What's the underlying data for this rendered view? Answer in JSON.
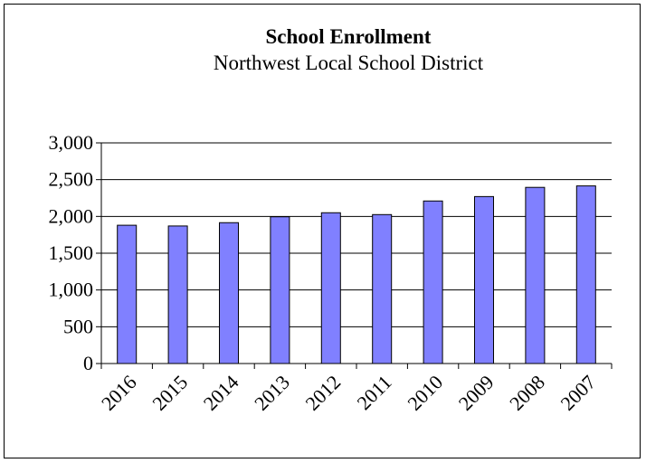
{
  "chart_data": {
    "type": "bar",
    "title": "School Enrollment",
    "subtitle": "Northwest Local School District",
    "xlabel": "",
    "ylabel": "",
    "categories": [
      "2016",
      "2015",
      "2014",
      "2013",
      "2012",
      "2011",
      "2010",
      "2009",
      "2008",
      "2007"
    ],
    "values": [
      1880,
      1870,
      1915,
      1995,
      2050,
      2025,
      2210,
      2270,
      2395,
      2415
    ],
    "ylim": [
      0,
      3000
    ],
    "yticks": [
      0,
      500,
      1000,
      1500,
      2000,
      2500,
      3000
    ],
    "ytick_labels": [
      "0",
      "500",
      "1,000",
      "1,500",
      "2,000",
      "2,500",
      "3,000"
    ],
    "grid": true,
    "legend": "none",
    "colors": {
      "bar_fill": "#8080ff",
      "bar_stroke": "#000000",
      "grid": "#000000",
      "axis": "#000000",
      "frame": "#000000"
    }
  }
}
